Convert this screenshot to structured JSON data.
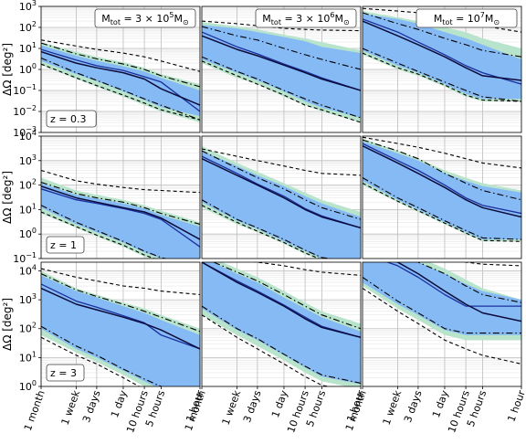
{
  "chart_data": {
    "type": "area",
    "layout": "3x3 grid of log-log panels (rows share y-axis, columns share x-axis)",
    "ylabel": "ΔΩ [deg²]",
    "x_scale": "log",
    "y_scale": "log",
    "grid": true,
    "xticks": [
      "1 month",
      "1 week",
      "3 days",
      "1 day",
      "10 hours",
      "5 hours",
      "1 hour"
    ],
    "xtick_hours": [
      720,
      168,
      72,
      24,
      10,
      5,
      1
    ],
    "xlim_hours": [
      720,
      1
    ],
    "column_titles": [
      {
        "pre": "M",
        "sub": "tot",
        "mid": " = 3 × 10",
        "sup": "5",
        "post": "M",
        "sub2": "⊙"
      },
      {
        "pre": "M",
        "sub": "tot",
        "mid": " = 3 × 10",
        "sup": "6",
        "post": "M",
        "sub2": "⊙"
      },
      {
        "pre": "M",
        "sub": "tot",
        "mid": " = 10",
        "sup": "7",
        "post": "M",
        "sub2": "⊙"
      }
    ],
    "rows": [
      {
        "label": "z = 0.3",
        "ylim_exp": [
          -3,
          3
        ],
        "ytick_exps": [
          -3,
          -2,
          -1,
          0,
          1,
          2,
          3
        ]
      },
      {
        "label": "z = 1",
        "ylim_exp": [
          -1,
          4
        ],
        "ytick_exps": [
          -1,
          0,
          1,
          2,
          3,
          4
        ]
      },
      {
        "label": "z = 3",
        "ylim_exp": [
          0,
          4.3
        ],
        "ytick_exps": [
          0,
          1,
          2,
          3,
          4
        ]
      }
    ],
    "x_hours": [
      720,
      168,
      72,
      24,
      10,
      5,
      1
    ],
    "colors": {
      "green_band": "#b9e4cc",
      "blue_band": "#86baf5",
      "median": "#0b0b3b",
      "alt_median": "#1a2f9c",
      "bounds": "#000000"
    },
    "panels": [
      {
        "row": 0,
        "col": 0,
        "green_upper": [
          20,
          7,
          4,
          2.2,
          1.2,
          0.6,
          0.2
        ],
        "green_lower": [
          1.6,
          0.35,
          0.15,
          0.05,
          0.02,
          0.01,
          0.003
        ],
        "blue_upper": [
          14,
          4.5,
          2.6,
          1.4,
          0.8,
          0.4,
          0.1
        ],
        "blue_lower": [
          2.5,
          0.6,
          0.28,
          0.09,
          0.035,
          0.016,
          0.006
        ],
        "dash_upper": [
          25,
          13,
          9,
          6,
          4,
          2.5,
          0.8
        ],
        "dashdot_upper": [
          18,
          5.5,
          3.2,
          1.8,
          1.0,
          0.5,
          0.15
        ],
        "dashdot_lower": [
          3.5,
          0.7,
          0.3,
          0.1,
          0.04,
          0.02,
          0.004
        ],
        "dash_lower": [
          1.8,
          0.4,
          0.17,
          0.06,
          0.025,
          0.012,
          0.004
        ],
        "median": [
          7,
          2.0,
          1.2,
          0.7,
          0.35,
          0.12,
          0.02
        ],
        "alt_median": [
          9,
          2.8,
          1.5,
          0.9,
          0.45,
          0.25,
          0.01
        ]
      },
      {
        "row": 0,
        "col": 1,
        "green_upper": [
          180,
          110,
          80,
          45,
          30,
          20,
          8
        ],
        "green_lower": [
          2,
          0.4,
          0.2,
          0.05,
          0.02,
          0.01,
          0.003
        ],
        "blue_upper": [
          130,
          90,
          60,
          35,
          22,
          12,
          6
        ],
        "blue_lower": [
          3,
          0.7,
          0.3,
          0.09,
          0.03,
          0.015,
          0.005
        ],
        "dash_upper": [
          200,
          150,
          120,
          90,
          80,
          75,
          70
        ],
        "dashdot_upper": [
          110,
          40,
          25,
          10,
          5,
          3,
          1
        ],
        "dashdot_lower": [
          4,
          0.8,
          0.35,
          0.1,
          0.04,
          0.02,
          0.005
        ],
        "dash_lower": [
          2.5,
          0.5,
          0.2,
          0.06,
          0.02,
          0.012,
          0.003
        ],
        "median": [
          40,
          9,
          4.5,
          1.6,
          0.7,
          0.35,
          0.1
        ],
        "alt_median": [
          60,
          12,
          5.5,
          1.8,
          0.8,
          0.4,
          0.1
        ]
      },
      {
        "row": 0,
        "col": 2,
        "green_upper": [
          600,
          300,
          200,
          100,
          60,
          30,
          10
        ],
        "green_lower": [
          5,
          1,
          0.5,
          0.15,
          0.05,
          0.03,
          0.03
        ],
        "blue_upper": [
          450,
          250,
          150,
          60,
          30,
          15,
          3
        ],
        "blue_lower": [
          8,
          1.5,
          0.7,
          0.2,
          0.07,
          0.04,
          0.04
        ],
        "dash_upper": [
          800,
          600,
          500,
          300,
          200,
          120,
          60
        ],
        "dashdot_upper": [
          500,
          150,
          80,
          30,
          15,
          8,
          4
        ],
        "dashdot_lower": [
          10,
          2,
          0.8,
          0.25,
          0.1,
          0.05,
          0.03
        ],
        "dash_lower": [
          6,
          1.2,
          0.6,
          0.18,
          0.06,
          0.035,
          0.03
        ],
        "median": [
          200,
          40,
          15,
          4,
          1.2,
          0.5,
          0.3
        ],
        "alt_median": [
          250,
          60,
          20,
          5,
          1.5,
          0.7,
          0.2
        ]
      },
      {
        "row": 1,
        "col": 0,
        "green_upper": [
          200,
          60,
          40,
          25,
          15,
          9,
          3
        ],
        "green_lower": [
          7,
          1.8,
          0.8,
          0.3,
          0.12,
          0.07,
          0.03
        ],
        "blue_upper": [
          120,
          40,
          28,
          18,
          11,
          6,
          2
        ],
        "blue_lower": [
          12,
          2.5,
          1.2,
          0.45,
          0.18,
          0.1,
          0.04
        ],
        "dash_upper": [
          400,
          150,
          110,
          80,
          65,
          60,
          50
        ],
        "dashdot_upper": [
          130,
          45,
          30,
          20,
          12,
          7,
          2.5
        ],
        "dashdot_lower": [
          15,
          3,
          1.4,
          0.5,
          0.2,
          0.11,
          0.045
        ],
        "dash_lower": [
          8,
          2,
          0.9,
          0.35,
          0.14,
          0.08,
          0.035
        ],
        "median": [
          90,
          30,
          20,
          12,
          8,
          4.5,
          0.6
        ],
        "alt_median": [
          70,
          25,
          18,
          11,
          7,
          4,
          0.3
        ]
      },
      {
        "row": 1,
        "col": 1,
        "green_upper": [
          4000,
          800,
          350,
          120,
          50,
          25,
          8
        ],
        "green_lower": [
          12,
          2.5,
          1.2,
          0.4,
          0.15,
          0.08,
          0.05
        ],
        "blue_upper": [
          2500,
          600,
          250,
          90,
          35,
          18,
          5
        ],
        "blue_lower": [
          20,
          3.5,
          1.6,
          0.5,
          0.2,
          0.1,
          0.06
        ],
        "dash_upper": [
          3000,
          1500,
          1000,
          600,
          400,
          300,
          250
        ],
        "dashdot_upper": [
          2500,
          500,
          200,
          70,
          25,
          12,
          4
        ],
        "dashdot_lower": [
          25,
          4,
          1.8,
          0.6,
          0.22,
          0.11,
          0.07
        ],
        "dash_lower": [
          15,
          3,
          1.3,
          0.45,
          0.17,
          0.09,
          0.06
        ],
        "median": [
          1200,
          250,
          100,
          30,
          10,
          5,
          1.8
        ],
        "alt_median": [
          1500,
          300,
          110,
          35,
          11,
          5.5,
          1.8
        ]
      },
      {
        "row": 1,
        "col": 2,
        "green_upper": [
          8000,
          2500,
          1200,
          400,
          200,
          120,
          60
        ],
        "green_lower": [
          100,
          20,
          8,
          2.5,
          1,
          0.5,
          0.5
        ],
        "blue_upper": [
          6000,
          2000,
          1000,
          300,
          150,
          90,
          50
        ],
        "blue_lower": [
          150,
          25,
          10,
          3,
          1.2,
          0.6,
          0.6
        ],
        "dash_upper": [
          9000,
          5000,
          3500,
          2000,
          1200,
          800,
          500
        ],
        "dashdot_upper": [
          7000,
          2500,
          1200,
          300,
          120,
          60,
          25
        ],
        "dashdot_lower": [
          200,
          30,
          12,
          3.5,
          1.4,
          0.7,
          0.6
        ],
        "dash_lower": [
          120,
          22,
          9,
          2.8,
          1.1,
          0.55,
          0.5
        ],
        "median": [
          4000,
          800,
          300,
          80,
          25,
          12,
          5
        ],
        "alt_median": [
          5000,
          1000,
          400,
          100,
          30,
          15,
          7
        ]
      },
      {
        "row": 2,
        "col": 0,
        "green_upper": [
          10000,
          2500,
          1500,
          800,
          500,
          300,
          100
        ],
        "green_lower": [
          60,
          15,
          7,
          2.5,
          1,
          0.6,
          0.3
        ],
        "blue_upper": [
          7000,
          2000,
          1200,
          600,
          350,
          200,
          60
        ],
        "blue_lower": [
          100,
          20,
          10,
          3.5,
          1.5,
          0.8,
          0.4
        ],
        "dash_upper": [
          12000,
          6000,
          4500,
          3000,
          2500,
          2000,
          1500
        ],
        "dashdot_upper": [
          8000,
          2200,
          1300,
          700,
          400,
          250,
          80
        ],
        "dashdot_lower": [
          120,
          25,
          12,
          4,
          1.8,
          1,
          0.5
        ],
        "dash_lower": [
          50,
          12,
          6,
          2,
          0.8,
          0.5,
          0.25
        ],
        "median": [
          2500,
          700,
          450,
          250,
          150,
          90,
          20
        ],
        "alt_median": [
          3500,
          900,
          550,
          280,
          160,
          60,
          20
        ]
      },
      {
        "row": 2,
        "col": 1,
        "green_upper": [
          40000,
          12000,
          6000,
          2000,
          800,
          400,
          150
        ],
        "green_lower": [
          300,
          60,
          25,
          8,
          3,
          1.5,
          0.8
        ],
        "blue_upper": [
          30000,
          8000,
          4000,
          1200,
          500,
          250,
          80
        ],
        "blue_lower": [
          500,
          90,
          40,
          12,
          4.5,
          2.2,
          1.2
        ],
        "dash_upper": [
          40000,
          25000,
          20000,
          15000,
          11000,
          9000,
          7000
        ],
        "dashdot_upper": [
          30000,
          9000,
          4500,
          1500,
          600,
          300,
          100
        ],
        "dashdot_lower": [
          600,
          100,
          45,
          13,
          5,
          2.5,
          1.3
        ],
        "dash_lower": [
          300,
          50,
          20,
          6,
          2.2,
          1.1,
          0.6
        ],
        "median": [
          20000,
          4000,
          1800,
          600,
          220,
          110,
          50
        ],
        "alt_median": [
          20000,
          4500,
          2000,
          650,
          250,
          120,
          50
        ]
      },
      {
        "row": 2,
        "col": 2,
        "green_upper": [
          40000,
          40000,
          30000,
          12000,
          5000,
          2500,
          1000
        ],
        "green_lower": [
          3000,
          500,
          200,
          60,
          40,
          40,
          40
        ],
        "blue_upper": [
          40000,
          30000,
          20000,
          8000,
          3500,
          2000,
          1000
        ],
        "blue_lower": [
          4000,
          700,
          300,
          90,
          60,
          60,
          60
        ],
        "dash_upper": [
          40000,
          40000,
          35000,
          25000,
          20000,
          17000,
          15000
        ],
        "dashdot_upper": [
          40000,
          40000,
          20000,
          8000,
          3000,
          1500,
          800
        ],
        "dashdot_lower": [
          6000,
          900,
          350,
          100,
          70,
          70,
          70
        ],
        "dash_lower": [
          2500,
          400,
          150,
          40,
          20,
          12,
          6
        ],
        "median": [
          40000,
          20000,
          8000,
          2000,
          700,
          350,
          180
        ],
        "alt_median": [
          40000,
          15000,
          6000,
          1500,
          600,
          600,
          600
        ]
      }
    ]
  }
}
